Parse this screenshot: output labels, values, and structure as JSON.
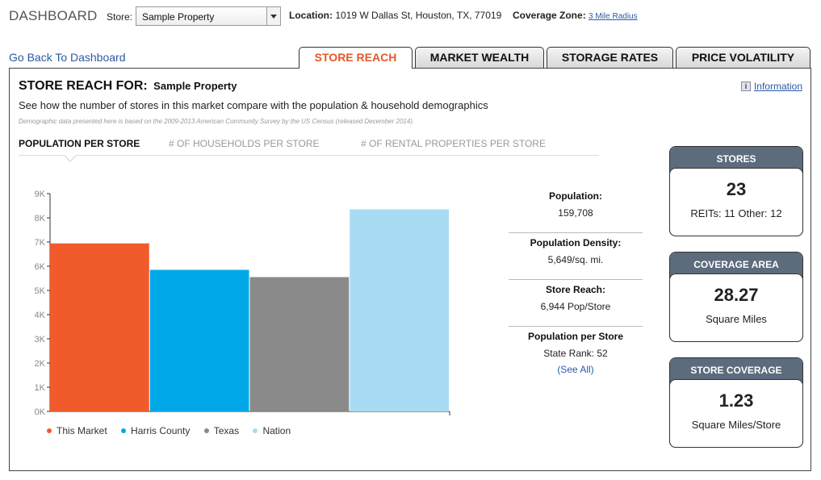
{
  "header": {
    "app_title": "DASHBOARD",
    "store_label": "Store:",
    "store_value": "Sample Property",
    "location_label": "Location:",
    "location_value": "1019 W Dallas St, Houston, TX, 77019",
    "coverage_label": "Coverage Zone:",
    "coverage_value": "3 Mile Radius"
  },
  "nav": {
    "back_link": "Go Back To Dashboard"
  },
  "tabs": [
    {
      "label": "STORE REACH",
      "active": true
    },
    {
      "label": "MARKET WEALTH",
      "active": false
    },
    {
      "label": "STORAGE RATES",
      "active": false
    },
    {
      "label": "PRICE VOLATILITY",
      "active": false
    }
  ],
  "panel": {
    "title": "STORE REACH FOR:",
    "property": "Sample Property",
    "info_label": "Information",
    "subtitle": "See how the number of stores in this market compare with the population & household demographics",
    "note": "Demographic data presented here is based on the 2009-2013 American Community Survey by the US Census (released December 2014).",
    "subtabs": [
      {
        "label": "POPULATION PER STORE",
        "active": true
      },
      {
        "label": "# OF HOUSEHOLDS PER STORE",
        "active": false
      },
      {
        "label": "# OF RENTAL PROPERTIES PER STORE",
        "active": false
      }
    ]
  },
  "chart_data": {
    "type": "bar",
    "categories": [
      "This Market",
      "Harris County",
      "Texas",
      "Nation"
    ],
    "values": [
      6944,
      5850,
      5550,
      8350
    ],
    "colors": [
      "#f15a2b",
      "#00a8e8",
      "#8a8a8a",
      "#a8dcf4"
    ],
    "yticks": [
      "0K",
      "1K",
      "2K",
      "3K",
      "4K",
      "5K",
      "6K",
      "7K",
      "8K",
      "9K"
    ],
    "ylim": [
      0,
      9000
    ],
    "legend": "bottom"
  },
  "stats": {
    "population_label": "Population:",
    "population_value": "159,708",
    "density_label": "Population Density:",
    "density_value": "5,649/sq. mi.",
    "reach_label": "Store Reach:",
    "reach_value": "6,944 Pop/Store",
    "per_store_label": "Population per Store",
    "state_rank": "State Rank: 52",
    "see_all": "(See All)"
  },
  "cards": {
    "stores": {
      "title": "STORES",
      "value": "23",
      "detail": "REITs: 11 Other: 12"
    },
    "coverage_area": {
      "title": "COVERAGE AREA",
      "value": "28.27",
      "detail": "Square Miles"
    },
    "store_coverage": {
      "title": "STORE COVERAGE",
      "value": "1.23",
      "detail": "Square Miles/Store"
    }
  }
}
